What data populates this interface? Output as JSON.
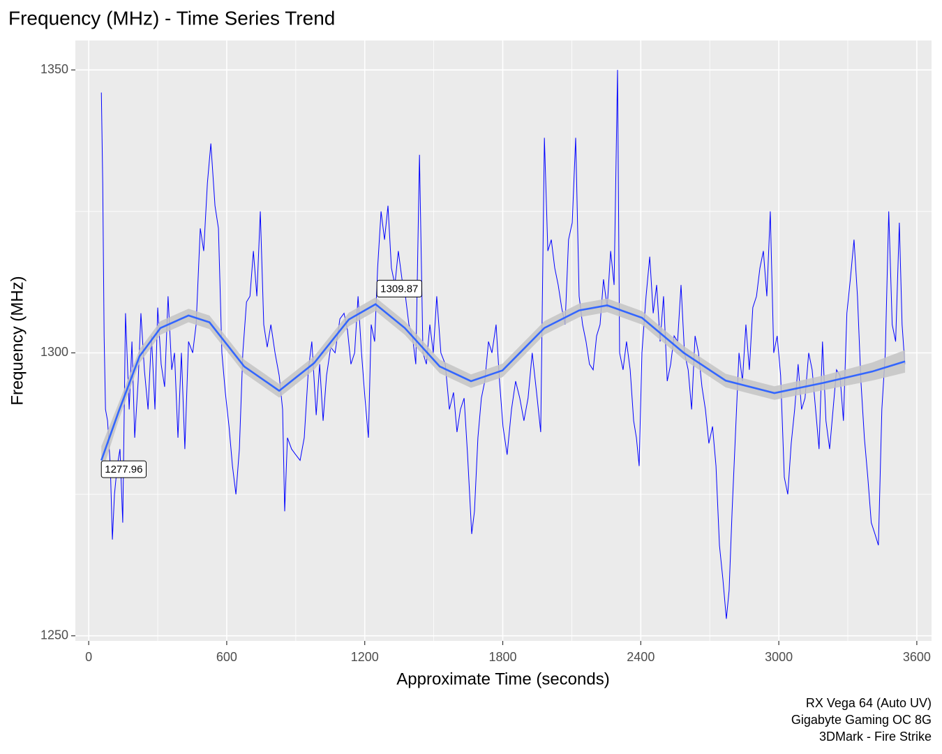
{
  "chart_data": {
    "type": "line",
    "title": "Frequency (MHz) - Time Series Trend",
    "x_label": "Approximate Time (seconds)",
    "y_label": "Frequency (MHz)",
    "caption": [
      "RX Vega 64 (Auto UV)",
      "Gigabyte Gaming OC 8G",
      "3DMark - Fire Strike"
    ],
    "xlim": [
      -58,
      3664
    ],
    "ylim": [
      1249.1,
      1355.2
    ],
    "xticks": [
      0,
      600,
      1200,
      1800,
      2400,
      3000,
      3600
    ],
    "x_minor_ticks": [
      300,
      900,
      1500,
      2100,
      2700,
      3300
    ],
    "yticks": [
      1250,
      1300,
      1350
    ],
    "y_minor_ticks": [
      1275,
      1325
    ],
    "grid": true,
    "background": "#EBEBEB",
    "series": [
      {
        "color": "#0000FF",
        "x": [
          55,
          61,
          67,
          73,
          82,
          94,
          103,
          112,
          124,
          136,
          148,
          160,
          176,
          188,
          200,
          215,
          227,
          242,
          258,
          273,
          288,
          300,
          315,
          330,
          345,
          361,
          373,
          388,
          403,
          418,
          434,
          452,
          467,
          485,
          500,
          516,
          531,
          549,
          564,
          579,
          594,
          610,
          625,
          640,
          655,
          670,
          686,
          701,
          716,
          731,
          746,
          761,
          776,
          792,
          810,
          828,
          843,
          852,
          864,
          882,
          900,
          919,
          937,
          955,
          970,
          989,
          1004,
          1019,
          1034,
          1052,
          1071,
          1092,
          1110,
          1125,
          1140,
          1156,
          1171,
          1186,
          1201,
          1216,
          1228,
          1243,
          1256,
          1271,
          1286,
          1301,
          1316,
          1331,
          1346,
          1362,
          1377,
          1392,
          1407,
          1422,
          1438,
          1453,
          1468,
          1483,
          1498,
          1513,
          1531,
          1550,
          1568,
          1586,
          1601,
          1616,
          1632,
          1647,
          1665,
          1677,
          1692,
          1707,
          1722,
          1738,
          1753,
          1771,
          1786,
          1801,
          1819,
          1838,
          1856,
          1874,
          1892,
          1910,
          1928,
          1947,
          1965,
          1981,
          1996,
          2011,
          2026,
          2041,
          2056,
          2071,
          2086,
          2102,
          2117,
          2132,
          2147,
          2162,
          2177,
          2193,
          2208,
          2223,
          2238,
          2254,
          2269,
          2284,
          2299,
          2308,
          2323,
          2338,
          2354,
          2369,
          2381,
          2393,
          2405,
          2423,
          2439,
          2454,
          2469,
          2484,
          2499,
          2515,
          2530,
          2545,
          2560,
          2575,
          2590,
          2606,
          2621,
          2636,
          2651,
          2666,
          2681,
          2696,
          2712,
          2727,
          2742,
          2757,
          2772,
          2784,
          2797,
          2812,
          2827,
          2842,
          2857,
          2872,
          2887,
          2903,
          2918,
          2933,
          2948,
          2963,
          2978,
          2993,
          3008,
          3024,
          3039,
          3054,
          3069,
          3084,
          3099,
          3114,
          3130,
          3145,
          3160,
          3175,
          3190,
          3205,
          3221,
          3236,
          3251,
          3266,
          3281,
          3296,
          3311,
          3327,
          3342,
          3357,
          3372,
          3387,
          3402,
          3418,
          3433,
          3448,
          3463,
          3478,
          3493,
          3508,
          3524,
          3536,
          3548
        ],
        "values": [
          1346,
          1330,
          1303,
          1290,
          1288,
          1280,
          1267,
          1275,
          1280,
          1283,
          1270,
          1307,
          1290,
          1302,
          1285,
          1295,
          1307,
          1297,
          1290,
          1303,
          1290,
          1308,
          1298,
          1294,
          1310,
          1297,
          1300,
          1285,
          1300,
          1283,
          1302,
          1300,
          1305,
          1322,
          1318,
          1330,
          1337,
          1326,
          1322,
          1300,
          1293,
          1287,
          1280,
          1275,
          1283,
          1300,
          1309,
          1310,
          1318,
          1310,
          1325,
          1305,
          1301,
          1305,
          1300,
          1296,
          1290,
          1272,
          1285,
          1283,
          1282,
          1281,
          1285,
          1297,
          1302,
          1289,
          1298,
          1288,
          1296,
          1301,
          1300,
          1306,
          1307,
          1304,
          1298,
          1300,
          1310,
          1300,
          1292,
          1285,
          1305,
          1302,
          1315,
          1325,
          1320,
          1326,
          1315,
          1312,
          1318,
          1313,
          1310,
          1305,
          1303,
          1298,
          1335,
          1300,
          1298,
          1305,
          1300,
          1310,
          1300,
          1298,
          1290,
          1293,
          1286,
          1290,
          1292,
          1282,
          1268,
          1272,
          1285,
          1292,
          1295,
          1302,
          1300,
          1305,
          1295,
          1287,
          1282,
          1290,
          1295,
          1292,
          1288,
          1292,
          1300,
          1293,
          1286,
          1338,
          1318,
          1320,
          1315,
          1312,
          1308,
          1305,
          1320,
          1323,
          1338,
          1310,
          1305,
          1302,
          1298,
          1297,
          1303,
          1305,
          1313,
          1308,
          1318,
          1312,
          1350,
          1300,
          1297,
          1302,
          1297,
          1288,
          1285,
          1280,
          1300,
          1310,
          1317,
          1307,
          1312,
          1302,
          1310,
          1295,
          1298,
          1303,
          1302,
          1312,
          1300,
          1297,
          1290,
          1303,
          1300,
          1294,
          1290,
          1284,
          1287,
          1280,
          1266,
          1260,
          1253,
          1258,
          1272,
          1286,
          1300,
          1295,
          1305,
          1297,
          1308,
          1310,
          1315,
          1318,
          1310,
          1325,
          1300,
          1303,
          1296,
          1278,
          1275,
          1284,
          1290,
          1298,
          1290,
          1292,
          1300,
          1297,
          1290,
          1283,
          1302,
          1288,
          1283,
          1290,
          1297,
          1296,
          1288,
          1307,
          1313,
          1320,
          1310,
          1295,
          1285,
          1278,
          1270,
          1268,
          1266,
          1290,
          1300,
          1325,
          1305,
          1302,
          1323,
          1305,
          1298
        ]
      },
      {
        "color": "#3366FF",
        "band_color": "#C4C4C4",
        "x": [
          55,
          130,
          221,
          312,
          434,
          525,
          676,
          828,
          980,
          1131,
          1247,
          1374,
          1526,
          1662,
          1799,
          1981,
          2132,
          2254,
          2405,
          2587,
          2769,
          2981,
          3194,
          3406,
          3549
        ],
        "values": [
          1281,
          1289.6,
          1299.4,
          1304.4,
          1306.6,
          1305.4,
          1297.6,
          1293.3,
          1298.2,
          1305.9,
          1308.6,
          1304.4,
          1297.6,
          1295.0,
          1296.9,
          1304.4,
          1307.5,
          1308.4,
          1306.2,
          1300.0,
          1295.1,
          1292.9,
          1294.7,
          1296.7,
          1298.5
        ],
        "ci_lower": [
          1278.5,
          1288.1,
          1298.2,
          1303.2,
          1305.4,
          1304.2,
          1296.4,
          1292.1,
          1297.0,
          1304.7,
          1307.4,
          1303.2,
          1296.4,
          1293.8,
          1295.7,
          1303.2,
          1306.3,
          1307.2,
          1305.0,
          1298.8,
          1293.9,
          1291.7,
          1293.4,
          1295.1,
          1296.5
        ],
        "ci_upper": [
          1283.5,
          1291.1,
          1300.6,
          1305.6,
          1307.8,
          1306.6,
          1298.8,
          1294.5,
          1299.4,
          1307.1,
          1309.8,
          1305.6,
          1298.8,
          1296.2,
          1298.1,
          1305.6,
          1308.7,
          1309.6,
          1307.4,
          1301.2,
          1296.3,
          1294.1,
          1296.0,
          1298.3,
          1300.5
        ]
      }
    ],
    "annotations": [
      {
        "x": 55,
        "value": 1277.96
      },
      {
        "x": 1253,
        "value": 1309.87
      }
    ]
  }
}
